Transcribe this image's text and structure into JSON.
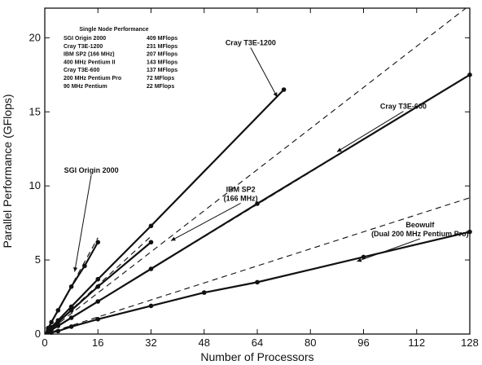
{
  "chart_data": {
    "type": "line",
    "xlabel": "Number of Processors",
    "ylabel": "Parallel Performance (GFlops)",
    "xlim": [
      0,
      128
    ],
    "ylim": [
      0,
      22
    ],
    "xticks": [
      0,
      16,
      32,
      48,
      64,
      80,
      96,
      112,
      128
    ],
    "yticks": [
      0,
      5,
      10,
      15,
      20
    ],
    "grid": false,
    "series": [
      {
        "name": "SGI Origin 2000",
        "style": "solid",
        "markers": true,
        "x": [
          1,
          2,
          4,
          8,
          12,
          16
        ],
        "y": [
          0.4,
          0.8,
          1.6,
          3.2,
          4.6,
          6.2
        ]
      },
      {
        "name": "Cray T3E-1200",
        "style": "solid",
        "markers": true,
        "x": [
          1,
          2,
          4,
          8,
          16,
          32,
          72
        ],
        "y": [
          0.23,
          0.46,
          0.92,
          1.85,
          3.7,
          7.3,
          16.5
        ]
      },
      {
        "name": "IBM SP2 (166 MHz)",
        "style": "solid",
        "markers": true,
        "x": [
          1,
          2,
          4,
          8,
          16,
          32
        ],
        "y": [
          0.2,
          0.4,
          0.8,
          1.6,
          3.2,
          6.2
        ]
      },
      {
        "name": "Cray T3E-600",
        "style": "solid",
        "markers": true,
        "x": [
          1,
          2,
          4,
          8,
          16,
          32,
          64,
          128
        ],
        "y": [
          0.14,
          0.28,
          0.55,
          1.1,
          2.2,
          4.4,
          8.8,
          17.5
        ]
      },
      {
        "name": "Beowulf (Dual 200 MHz Pentium Pro)",
        "style": "solid",
        "markers": true,
        "x": [
          2,
          4,
          8,
          16,
          32,
          48,
          64,
          96,
          128
        ],
        "y": [
          0.1,
          0.2,
          0.5,
          1.0,
          1.9,
          2.8,
          3.5,
          5.2,
          6.9
        ]
      }
    ],
    "ideal_lines": [
      {
        "x": [
          0,
          128
        ],
        "y": [
          0,
          22.2
        ],
        "style": "dashed"
      },
      {
        "x": [
          0,
          128
        ],
        "y": [
          0,
          17.5
        ],
        "style": "dashed"
      },
      {
        "x": [
          0,
          32
        ],
        "y": [
          0,
          6.6
        ],
        "style": "dashed"
      },
      {
        "x": [
          0,
          16
        ],
        "y": [
          0,
          6.5
        ],
        "style": "dashed"
      },
      {
        "x": [
          0,
          128
        ],
        "y": [
          0,
          9.2
        ],
        "style": "dashed"
      }
    ],
    "annotations": [
      {
        "text": "Cray T3E-1200",
        "label_at": [
          62,
          19.5
        ],
        "arrow_to": [
          70,
          16
        ]
      },
      {
        "text": "Cray T3E-600",
        "label_at": [
          108,
          15.2
        ],
        "arrow_to": [
          88,
          12.3
        ]
      },
      {
        "text": "SGI Origin 2000",
        "label_at": [
          14,
          10.9
        ],
        "arrow_to": [
          9,
          4.2
        ]
      },
      {
        "text": "IBM SP2",
        "text2": "(166 MHz)",
        "label_at": [
          59,
          9.6
        ],
        "arrow_to": [
          38,
          6.3
        ]
      },
      {
        "text": "Beowulf",
        "text2": "(Dual 200 MHz Pentium Pro)",
        "label_at": [
          113,
          7.2
        ],
        "arrow_to": [
          94,
          4.9
        ]
      }
    ],
    "inset_table": {
      "title": "Single Node Performance",
      "rows": [
        {
          "machine": "SGI Origin 2000",
          "value": "409 MFlops"
        },
        {
          "machine": "Cray T3E-1200",
          "value": "231 MFlops"
        },
        {
          "machine": "IBM SP2 (166 MHz)",
          "value": "207 MFlops"
        },
        {
          "machine": "400 MHz Pentium II",
          "value": "143 MFlops"
        },
        {
          "machine": "Cray T3E-600",
          "value": "137 MFlops"
        },
        {
          "machine": "200 MHz Pentium Pro",
          "value": "72 MFlops"
        },
        {
          "machine": "90 MHz Pentium",
          "value": "22 MFlops"
        }
      ]
    }
  }
}
